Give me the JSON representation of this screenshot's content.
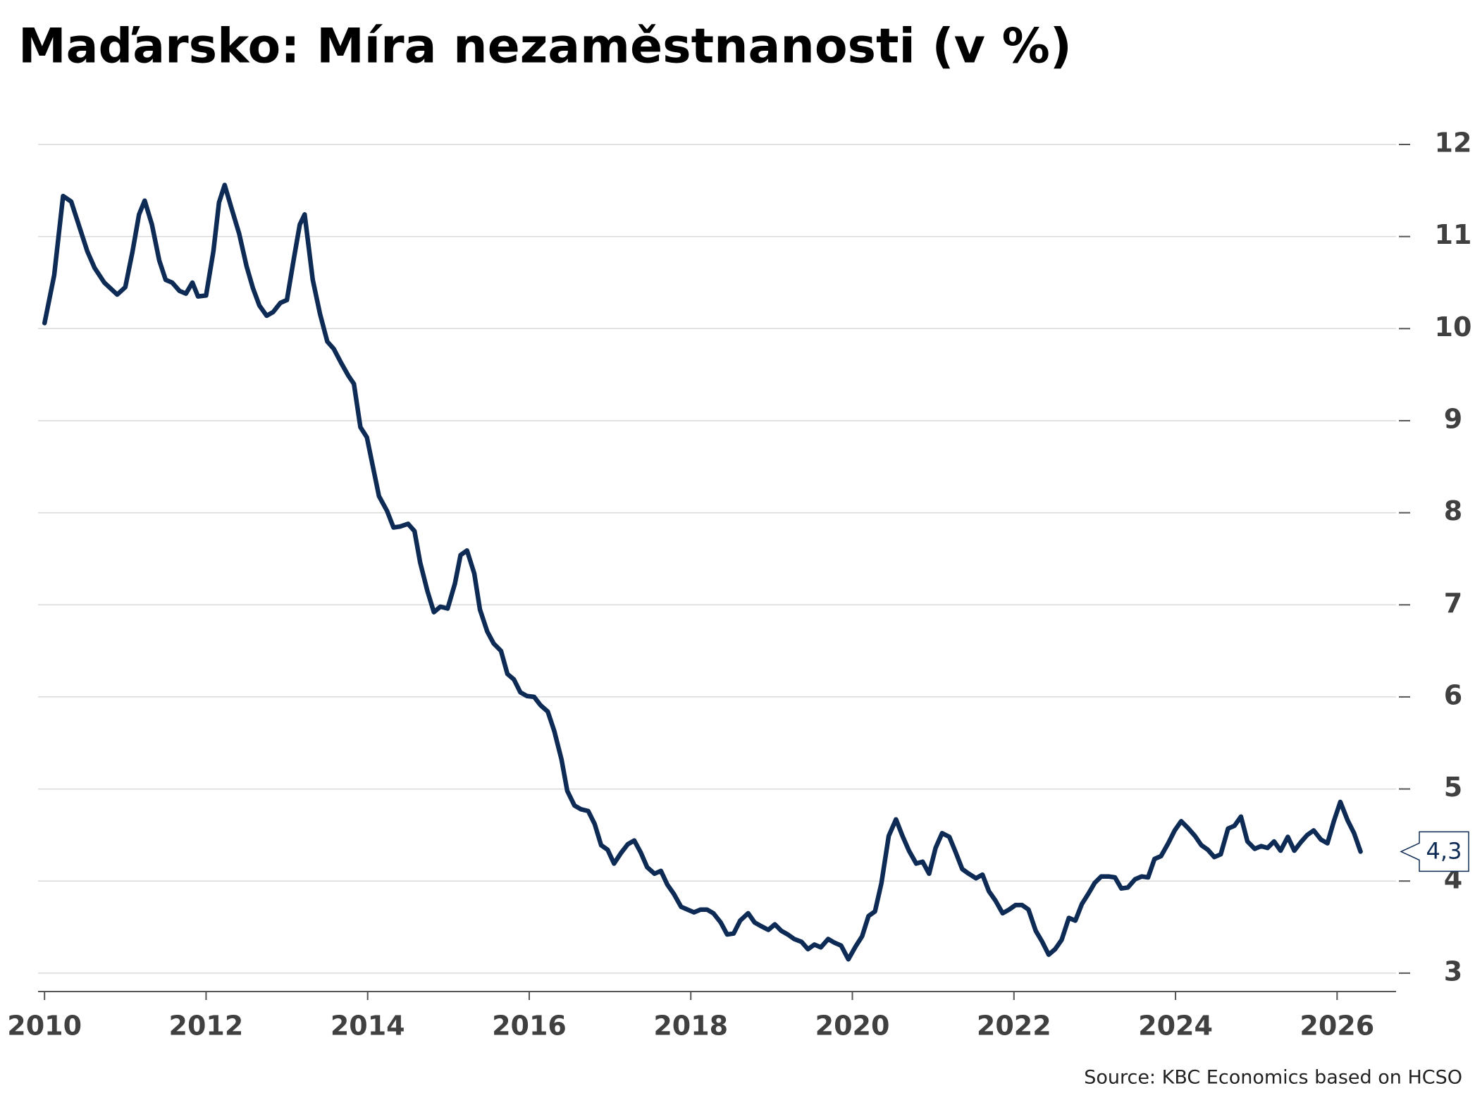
{
  "chart_data": {
    "type": "line",
    "title": "Maďarsko: Míra nezaměstnanosti (v %)",
    "source": "Source: KBC Economics based on HCSO",
    "x": [
      2010.0,
      2010.12,
      2010.23,
      2010.33,
      2010.53,
      2010.62,
      2010.74,
      2010.9,
      2011.0,
      2011.09,
      2011.17,
      2011.24,
      2011.33,
      2011.42,
      2011.5,
      2011.58,
      2011.67,
      2011.75,
      2011.83,
      2011.9,
      2012.0,
      2012.09,
      2012.16,
      2012.23,
      2012.31,
      2012.41,
      2012.5,
      2012.58,
      2012.66,
      2012.75,
      2012.83,
      2012.92,
      2013.0,
      2013.09,
      2013.16,
      2013.22,
      2013.32,
      2013.41,
      2013.5,
      2013.58,
      2013.67,
      2013.76,
      2013.83,
      2013.91,
      2013.99,
      2014.07,
      2014.14,
      2014.24,
      2014.32,
      2014.4,
      2014.5,
      2014.58,
      2014.65,
      2014.74,
      2014.82,
      2014.9,
      2014.99,
      2015.08,
      2015.15,
      2015.23,
      2015.32,
      2015.39,
      2015.48,
      2015.56,
      2015.65,
      2015.73,
      2015.81,
      2015.89,
      2015.97,
      2016.06,
      2016.14,
      2016.23,
      2016.31,
      2016.4,
      2016.47,
      2016.56,
      2016.64,
      2016.73,
      2016.81,
      2016.89,
      2016.97,
      2017.05,
      2017.14,
      2017.22,
      2017.3,
      2017.38,
      2017.46,
      2017.55,
      2017.63,
      2017.71,
      2017.79,
      2017.88,
      2017.96,
      2018.04,
      2018.12,
      2018.2,
      2018.28,
      2018.37,
      2018.45,
      2018.53,
      2018.61,
      2018.71,
      2018.79,
      2018.87,
      2018.96,
      2019.04,
      2019.12,
      2019.2,
      2019.28,
      2019.37,
      2019.45,
      2019.53,
      2019.61,
      2019.7,
      2019.78,
      2019.86,
      2019.95,
      2020.04,
      2020.12,
      2020.2,
      2020.28,
      2020.36,
      2020.45,
      2020.54,
      2020.62,
      2020.7,
      2020.79,
      2020.87,
      2020.95,
      2021.03,
      2021.11,
      2021.2,
      2021.28,
      2021.36,
      2021.44,
      2021.53,
      2021.61,
      2021.69,
      2021.77,
      2021.86,
      2021.94,
      2022.02,
      2022.1,
      2022.18,
      2022.27,
      2022.35,
      2022.43,
      2022.51,
      2022.59,
      2022.68,
      2022.76,
      2022.84,
      2022.92,
      2023.0,
      2023.08,
      2023.17,
      2023.25,
      2023.33,
      2023.41,
      2023.5,
      2023.58,
      2023.66,
      2023.74,
      2023.82,
      2023.91,
      2023.99,
      2024.07,
      2024.15,
      2024.24,
      2024.32,
      2024.4,
      2024.48,
      2024.56,
      2024.65,
      2024.73,
      2024.81,
      2024.89,
      2024.98,
      2025.06,
      2025.14,
      2025.22,
      2025.3,
      2025.39,
      2025.47,
      2025.55,
      2025.63,
      2025.71,
      2025.8,
      2025.88,
      2025.96,
      2026.04,
      2026.13,
      2026.21,
      2026.29
    ],
    "series": [
      {
        "color": "#0d2b55",
        "values": [
          10.06,
          10.58,
          11.44,
          11.38,
          10.84,
          10.66,
          10.5,
          10.37,
          10.45,
          10.84,
          11.24,
          11.39,
          11.13,
          10.74,
          10.53,
          10.5,
          10.41,
          10.38,
          10.5,
          10.35,
          10.36,
          10.84,
          11.37,
          11.56,
          11.32,
          11.03,
          10.68,
          10.44,
          10.25,
          10.14,
          10.18,
          10.28,
          10.31,
          10.78,
          11.13,
          11.24,
          10.53,
          10.16,
          9.86,
          9.78,
          9.63,
          9.49,
          9.4,
          8.93,
          8.82,
          8.48,
          8.18,
          8.02,
          7.84,
          7.85,
          7.88,
          7.8,
          7.46,
          7.15,
          6.92,
          6.98,
          6.96,
          7.23,
          7.54,
          7.59,
          7.34,
          6.95,
          6.71,
          6.58,
          6.5,
          6.25,
          6.19,
          6.05,
          6.01,
          6.0,
          5.91,
          5.84,
          5.63,
          5.32,
          4.98,
          4.82,
          4.78,
          4.76,
          4.62,
          4.39,
          4.34,
          4.19,
          4.31,
          4.4,
          4.44,
          4.31,
          4.15,
          4.08,
          4.11,
          3.96,
          3.86,
          3.72,
          3.69,
          3.66,
          3.69,
          3.69,
          3.65,
          3.55,
          3.42,
          3.43,
          3.57,
          3.65,
          3.55,
          3.51,
          3.47,
          3.53,
          3.46,
          3.42,
          3.37,
          3.34,
          3.26,
          3.31,
          3.28,
          3.37,
          3.33,
          3.3,
          3.15,
          3.29,
          3.4,
          3.62,
          3.67,
          3.98,
          4.49,
          4.67,
          4.49,
          4.33,
          4.19,
          4.21,
          4.08,
          4.36,
          4.52,
          4.48,
          4.31,
          4.13,
          4.08,
          4.03,
          4.07,
          3.89,
          3.79,
          3.65,
          3.69,
          3.74,
          3.74,
          3.69,
          3.46,
          3.34,
          3.2,
          3.26,
          3.36,
          3.6,
          3.57,
          3.75,
          3.86,
          3.98,
          4.05,
          4.05,
          4.04,
          3.92,
          3.93,
          4.02,
          4.05,
          4.04,
          4.24,
          4.27,
          4.41,
          4.55,
          4.65,
          4.58,
          4.49,
          4.39,
          4.34,
          4.26,
          4.29,
          4.57,
          4.6,
          4.7,
          4.43,
          4.35,
          4.38,
          4.36,
          4.43,
          4.33,
          4.48,
          4.33,
          4.42,
          4.5,
          4.55,
          4.45,
          4.41,
          4.65,
          4.86,
          4.66,
          4.52,
          4.32
        ],
        "last_value_label": "4,3"
      }
    ],
    "xlim": [
      2009.92,
      2026.73
    ],
    "xticks": [
      2010,
      2012,
      2014,
      2016,
      2018,
      2020,
      2022,
      2024,
      2026
    ],
    "ylim": [
      2.8,
      12
    ],
    "yticks": [
      3,
      4,
      5,
      6,
      7,
      8,
      9,
      10,
      11,
      12
    ],
    "grid": true
  }
}
